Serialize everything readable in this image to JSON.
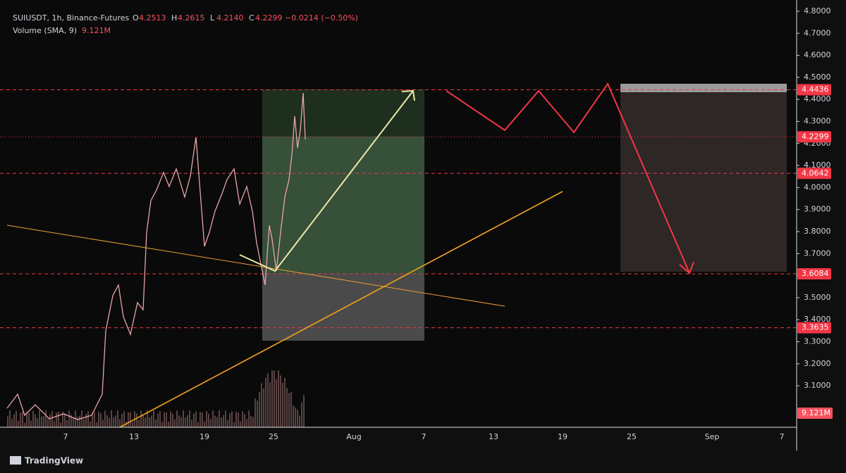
{
  "header": {
    "symbol": "SUIUSDT, 1h, Binance-Futures",
    "ohlc": [
      {
        "key": "O",
        "value": "4.2513"
      },
      {
        "key": "H",
        "value": "4.2615"
      },
      {
        "key": "L",
        "value": "4.2140"
      },
      {
        "key": "C",
        "value": "4.2299"
      }
    ],
    "change": "−0.0214 (−0.50%)",
    "volume_label": "Volume (SMA, 9)",
    "volume_value": "9.121M"
  },
  "price_axis": {
    "ylim": [
      2.912,
      4.851
    ],
    "ticks": [
      {
        "value": 4.8,
        "label": "4.8000"
      },
      {
        "value": 4.7,
        "label": "4.7000"
      },
      {
        "value": 4.6,
        "label": "4.6000"
      },
      {
        "value": 4.5,
        "label": "4.5000"
      },
      {
        "value": 4.4,
        "label": "4.4000"
      },
      {
        "value": 4.3,
        "label": "4.3000"
      },
      {
        "value": 4.2,
        "label": "4.2000"
      },
      {
        "value": 4.1,
        "label": "4.1000"
      },
      {
        "value": 4.0,
        "label": "4.0000"
      },
      {
        "value": 3.9,
        "label": "3.9000"
      },
      {
        "value": 3.8,
        "label": "3.8000"
      },
      {
        "value": 3.7,
        "label": "3.7000"
      },
      {
        "value": 3.6,
        "label": "3.6000"
      },
      {
        "value": 3.5,
        "label": "3.5000"
      },
      {
        "value": 3.4,
        "label": "3.4000"
      },
      {
        "value": 3.3,
        "label": "3.3000"
      },
      {
        "value": 3.2,
        "label": "3.2000"
      },
      {
        "value": 3.1,
        "label": "3.1000"
      }
    ],
    "tags": [
      4.4436,
      4.2299,
      4.0642,
      3.6084,
      3.3635
    ],
    "volume_tag": "9.121M"
  },
  "time_axis": {
    "labels": [
      "7",
      "13",
      "19",
      "25",
      "Aug",
      "7",
      "13",
      "19",
      "25",
      "Sep",
      "7"
    ]
  },
  "footer": {
    "brand": "TradingView"
  }
}
